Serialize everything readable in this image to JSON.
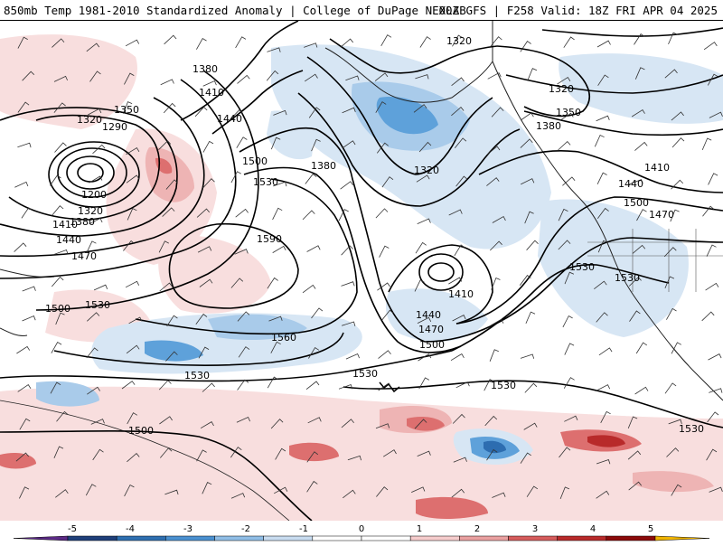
{
  "header": {
    "title": "850mb Temp 1981-2010 Standardized Anomaly | College of DuPage NEXLAB",
    "run_info": "00Z GFS | F258 Valid: 18Z FRI APR 04 2025"
  },
  "contour_labels": [
    {
      "text": "1320",
      "id": "c1"
    },
    {
      "text": "1350",
      "id": "c2"
    },
    {
      "text": "1290",
      "id": "c3"
    },
    {
      "text": "1380",
      "id": "c4"
    },
    {
      "text": "1410",
      "id": "c5"
    },
    {
      "text": "1440",
      "id": "c6"
    },
    {
      "text": "1200",
      "id": "c7"
    },
    {
      "text": "1320",
      "id": "c8"
    },
    {
      "text": "1380",
      "id": "c9"
    },
    {
      "text": "1410",
      "id": "c10"
    },
    {
      "text": "1440",
      "id": "c11"
    },
    {
      "text": "1470",
      "id": "c12"
    },
    {
      "text": "1500",
      "id": "c13"
    },
    {
      "text": "1530",
      "id": "c14"
    },
    {
      "text": "1500",
      "id": "c15"
    },
    {
      "text": "1530",
      "id": "c16"
    },
    {
      "text": "1590",
      "id": "c17"
    },
    {
      "text": "1560",
      "id": "c18"
    },
    {
      "text": "1530",
      "id": "c19"
    },
    {
      "text": "1500",
      "id": "c20"
    },
    {
      "text": "1380",
      "id": "c21"
    },
    {
      "text": "1320",
      "id": "c22"
    },
    {
      "text": "1320",
      "id": "c23"
    },
    {
      "text": "1320",
      "id": "c24"
    },
    {
      "text": "1350",
      "id": "c25"
    },
    {
      "text": "1380",
      "id": "c26"
    },
    {
      "text": "1410",
      "id": "c27"
    },
    {
      "text": "1440",
      "id": "c28"
    },
    {
      "text": "1500",
      "id": "c29"
    },
    {
      "text": "1470",
      "id": "c30"
    },
    {
      "text": "1410",
      "id": "c31"
    },
    {
      "text": "1440",
      "id": "c32"
    },
    {
      "text": "1470",
      "id": "c33"
    },
    {
      "text": "1500",
      "id": "c34"
    },
    {
      "text": "1530",
      "id": "c35"
    },
    {
      "text": "1530",
      "id": "c36"
    },
    {
      "text": "1530",
      "id": "c37"
    },
    {
      "text": "1530",
      "id": "c38"
    },
    {
      "text": "1530",
      "id": "c39"
    }
  ],
  "colorbar": {
    "ticks": [
      "-5",
      "-4",
      "-3",
      "-2",
      "-1",
      "0",
      "1",
      "2",
      "3",
      "4",
      "5"
    ],
    "colors": [
      "#5b2a86",
      "#1f3f7a",
      "#2e6fb0",
      "#4a90d0",
      "#8fbde6",
      "#c8dcf0",
      "#ffffff",
      "#ffffff",
      "#f6cccc",
      "#eaa0a0",
      "#d65c5c",
      "#b82a2a",
      "#8b0a0a",
      "#f0b400"
    ]
  },
  "anomaly_colors": {
    "neg1": "#d7e6f4",
    "neg2": "#a9cbea",
    "neg3": "#5ea1da",
    "neg4": "#2d6db0",
    "pos1": "#f8dede",
    "pos2": "#eeb4b4",
    "pos3": "#dd6f6f",
    "pos4": "#b82a2a"
  }
}
